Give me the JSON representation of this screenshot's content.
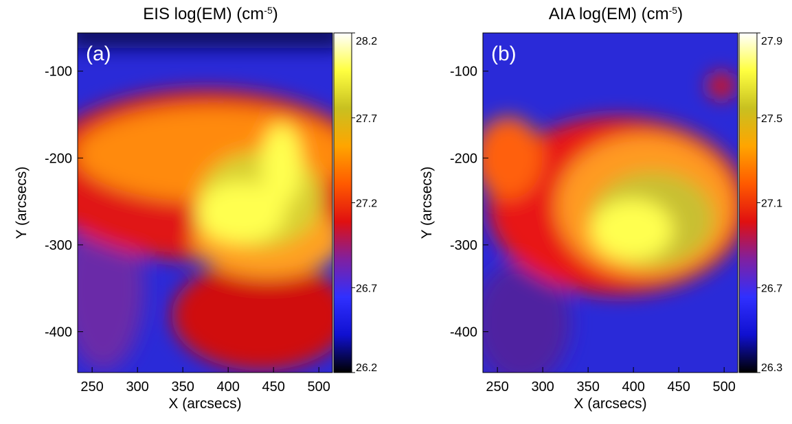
{
  "chart_data": [
    {
      "type": "heatmap",
      "title": [
        "EIS log(EM) (cm",
        "-5",
        ")"
      ],
      "panel_label": "(a)",
      "xlabel": "X (arcsecs)",
      "ylabel": "Y (arcsecs)",
      "xlim": [
        234,
        515
      ],
      "xticks": [
        250,
        300,
        350,
        400,
        450,
        500
      ],
      "ylim": [
        -447,
        -56
      ],
      "yticks": [
        -400,
        -300,
        -200,
        -100
      ],
      "clim": [
        26.2,
        28.2
      ],
      "cticks": [
        26.2,
        26.7,
        27.2,
        27.7,
        28.2
      ],
      "colormap": [
        "#000000",
        "#1010d0",
        "#3030ff",
        "#8020a0",
        "#e01010",
        "#ff5a00",
        "#ffa500",
        "#c8c020",
        "#ffff40",
        "#ffffff"
      ]
    },
    {
      "type": "heatmap",
      "title": [
        "AIA log(EM) (cm",
        "-5",
        ")"
      ],
      "panel_label": "(b)",
      "xlabel": "X (arcsecs)",
      "ylabel": "Y (arcsecs)",
      "xlim": [
        234,
        515
      ],
      "xticks": [
        250,
        300,
        350,
        400,
        450,
        500
      ],
      "ylim": [
        -447,
        -56
      ],
      "yticks": [
        -400,
        -300,
        -200,
        -100
      ],
      "clim": [
        26.3,
        27.9
      ],
      "cticks": [
        26.3,
        26.7,
        27.1,
        27.5,
        27.9
      ],
      "colormap": [
        "#000000",
        "#1010d0",
        "#3030ff",
        "#8020a0",
        "#e01010",
        "#ff5a00",
        "#ffa500",
        "#c8c020",
        "#ffff40",
        "#ffffff"
      ]
    }
  ]
}
